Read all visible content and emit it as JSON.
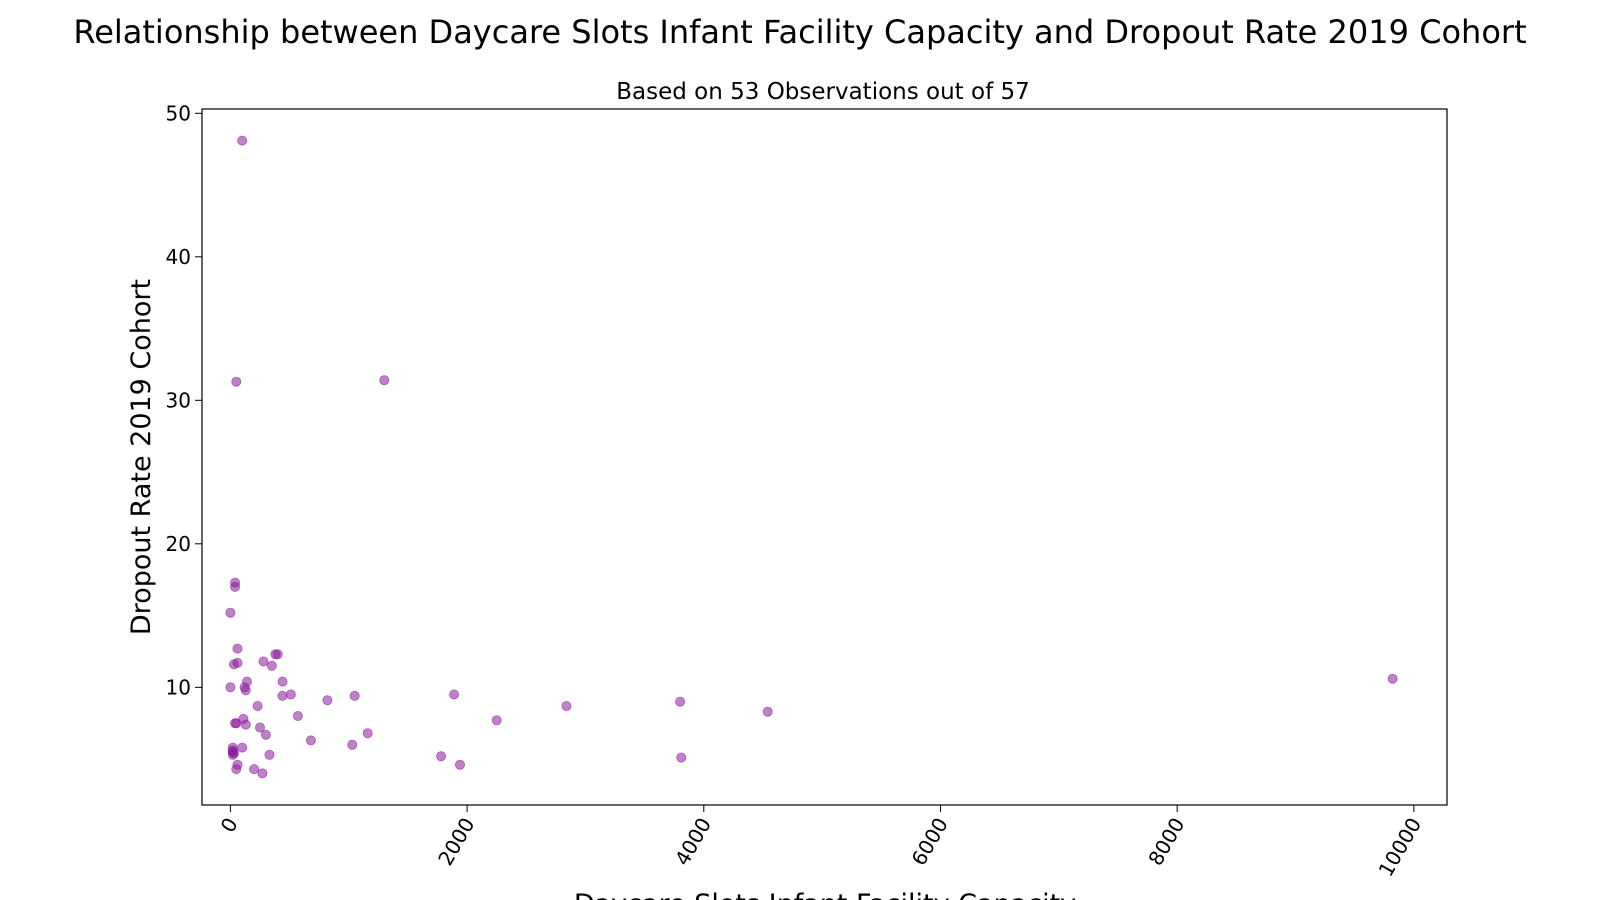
{
  "chart_data": {
    "type": "scatter",
    "title": "Relationship between Daycare Slots Infant Facility Capacity and Dropout Rate 2019 Cohort",
    "subtitle": "Based on 53 Observations out of 57",
    "xlabel": "Daycare Slots Infant Facility Capacity",
    "ylabel": "Dropout Rate 2019 Cohort",
    "xlim": [
      -240,
      10280
    ],
    "ylim": [
      1.8,
      50.3
    ],
    "xticks": [
      0,
      2000,
      4000,
      6000,
      8000,
      10000
    ],
    "yticks": [
      10,
      20,
      30,
      40,
      50
    ],
    "grid": false,
    "color": "#8b1a9b",
    "x": [
      100,
      50,
      1300,
      40,
      40,
      0,
      60,
      30,
      60,
      380,
      400,
      280,
      350,
      0,
      140,
      130,
      440,
      1890,
      510,
      440,
      1050,
      820,
      3800,
      9820,
      2840,
      4540,
      570,
      230,
      110,
      130,
      2250,
      50,
      40,
      300,
      1160,
      250,
      680,
      1030,
      20,
      100,
      20,
      330,
      20,
      20,
      1780,
      1940,
      3810,
      60,
      200,
      50,
      270,
      30,
      120
    ],
    "y": [
      48.1,
      31.3,
      31.4,
      17.3,
      17.0,
      15.2,
      12.7,
      11.6,
      11.7,
      12.3,
      12.3,
      11.8,
      11.5,
      10.0,
      10.4,
      9.8,
      10.4,
      9.5,
      9.5,
      9.4,
      9.4,
      9.1,
      9.0,
      10.6,
      8.7,
      8.3,
      8.0,
      8.7,
      7.8,
      7.4,
      7.7,
      7.5,
      7.5,
      6.7,
      6.8,
      7.2,
      6.3,
      6.0,
      5.8,
      5.8,
      5.5,
      5.3,
      5.3,
      5.6,
      5.2,
      4.6,
      5.1,
      4.6,
      4.3,
      4.3,
      4.0,
      5.4,
      10.0
    ]
  }
}
